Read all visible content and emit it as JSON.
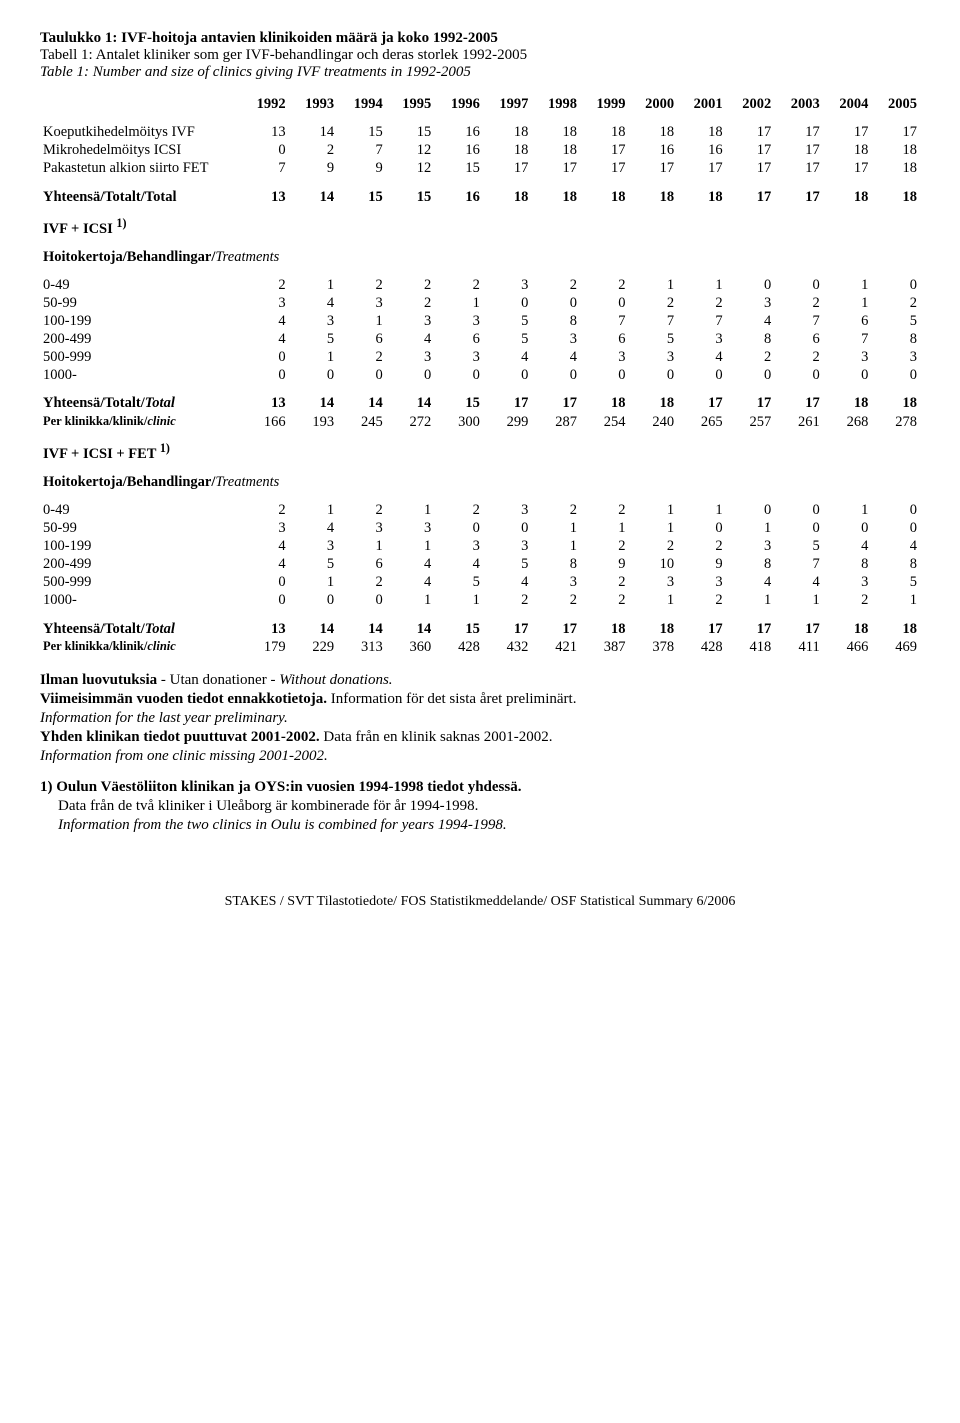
{
  "titles": {
    "fi": "Taulukko 1: IVF-hoitoja antavien klinikoiden määrä ja koko 1992-2005",
    "sv": "Tabell 1: Antalet kliniker som ger IVF-behandlingar och deras storlek 1992-2005",
    "en": "Table 1: Number and size of clinics giving IVF treatments in 1992-2005"
  },
  "years": [
    "1992",
    "1993",
    "1994",
    "1995",
    "1996",
    "1997",
    "1998",
    "1999",
    "2000",
    "2001",
    "2002",
    "2003",
    "2004",
    "2005"
  ],
  "block1": {
    "rows": [
      {
        "label": "Koeputkihedelmöitys IVF",
        "v": [
          13,
          14,
          15,
          15,
          16,
          18,
          18,
          18,
          18,
          18,
          17,
          17,
          17,
          17
        ]
      },
      {
        "label": "Mikrohedelmöitys ICSI",
        "v": [
          0,
          2,
          7,
          12,
          16,
          18,
          18,
          17,
          16,
          16,
          17,
          17,
          18,
          18
        ]
      },
      {
        "label": "Pakastetun alkion siirto FET",
        "v": [
          7,
          9,
          9,
          12,
          15,
          17,
          17,
          17,
          17,
          17,
          17,
          17,
          17,
          18
        ]
      }
    ],
    "total": {
      "label": "Yhteensä/Totalt/Total",
      "v": [
        13,
        14,
        15,
        15,
        16,
        18,
        18,
        18,
        18,
        18,
        17,
        17,
        18,
        18
      ]
    }
  },
  "section_ivf_icsi": "IVF + ICSI ",
  "section_ivf_icsi_sup": "1)",
  "treatments_label": "Hoitokertoja/Behandlingar/",
  "treatments_label_it": "Treatments",
  "block2": {
    "rows": [
      {
        "label": "0-49",
        "v": [
          2,
          1,
          2,
          2,
          2,
          3,
          2,
          2,
          1,
          1,
          0,
          0,
          1,
          0
        ]
      },
      {
        "label": "50-99",
        "v": [
          3,
          4,
          3,
          2,
          1,
          0,
          0,
          0,
          2,
          2,
          3,
          2,
          1,
          2
        ]
      },
      {
        "label": "100-199",
        "v": [
          4,
          3,
          1,
          3,
          3,
          5,
          8,
          7,
          7,
          7,
          4,
          7,
          6,
          5
        ]
      },
      {
        "label": "200-499",
        "v": [
          4,
          5,
          6,
          4,
          6,
          5,
          3,
          6,
          5,
          3,
          8,
          6,
          7,
          8
        ]
      },
      {
        "label": "500-999",
        "v": [
          0,
          1,
          2,
          3,
          3,
          4,
          4,
          3,
          3,
          4,
          2,
          2,
          3,
          3
        ]
      },
      {
        "label": "1000-",
        "v": [
          0,
          0,
          0,
          0,
          0,
          0,
          0,
          0,
          0,
          0,
          0,
          0,
          0,
          0
        ]
      }
    ],
    "total": {
      "label": "Yhteensä/Totalt/",
      "label_it": "Total",
      "v": [
        13,
        14,
        14,
        14,
        15,
        17,
        17,
        18,
        18,
        17,
        17,
        17,
        18,
        18
      ]
    },
    "perclin": {
      "label": "Per klinikka/klinik/",
      "label_it": "clinic",
      "v": [
        166,
        193,
        245,
        272,
        300,
        299,
        287,
        254,
        240,
        265,
        257,
        261,
        268,
        278
      ]
    }
  },
  "section_ivf_icsi_fet": "IVF + ICSI + FET ",
  "section_ivf_icsi_fet_sup": "1)",
  "block3": {
    "rows": [
      {
        "label": "0-49",
        "v": [
          2,
          1,
          2,
          1,
          2,
          3,
          2,
          2,
          1,
          1,
          0,
          0,
          1,
          0
        ]
      },
      {
        "label": "50-99",
        "v": [
          3,
          4,
          3,
          3,
          0,
          0,
          1,
          1,
          1,
          0,
          1,
          0,
          0,
          0
        ]
      },
      {
        "label": "100-199",
        "v": [
          4,
          3,
          1,
          1,
          3,
          3,
          1,
          2,
          2,
          2,
          3,
          5,
          4,
          4
        ]
      },
      {
        "label": "200-499",
        "v": [
          4,
          5,
          6,
          4,
          4,
          5,
          8,
          9,
          10,
          9,
          8,
          7,
          8,
          8
        ]
      },
      {
        "label": "500-999",
        "v": [
          0,
          1,
          2,
          4,
          5,
          4,
          3,
          2,
          3,
          3,
          4,
          4,
          3,
          5
        ]
      },
      {
        "label": "1000-",
        "v": [
          0,
          0,
          0,
          1,
          1,
          2,
          2,
          2,
          1,
          2,
          1,
          1,
          2,
          1
        ]
      }
    ],
    "total": {
      "label": "Yhteensä/Totalt/",
      "label_it": "Total",
      "v": [
        13,
        14,
        14,
        14,
        15,
        17,
        17,
        18,
        18,
        17,
        17,
        17,
        18,
        18
      ]
    },
    "perclin": {
      "label": "Per klinikka/klinik/",
      "label_it": "clinic",
      "v": [
        179,
        229,
        313,
        360,
        428,
        432,
        421,
        387,
        378,
        428,
        418,
        411,
        466,
        469
      ]
    }
  },
  "notes": {
    "n1a": "Ilman luovutuksia",
    "n1b": " - Utan donationer - ",
    "n1c": "Without donations.",
    "n2a": "Viimeisimmän vuoden tiedot ennakkotietoja.",
    "n2b": " Information för det sista året preliminärt.",
    "n3": "Information for the last year preliminary.",
    "n4a": "Yhden klinikan tiedot puuttuvat 2001-2002.",
    "n4b": " Data från en klinik saknas 2001-2002.",
    "n5": "Information from one clinic missing 2001-2002.",
    "n6": "1) Oulun Väestöliiton klinikan ja OYS:in vuosien 1994-1998 tiedot yhdessä.",
    "n7": "Data från de två kliniker i Uleåborg är kombinerade för år 1994-1998.",
    "n8": "Information from the two clinics in Oulu is combined for years 1994-1998."
  },
  "footer": "STAKES / SVT Tilastotiedote/ FOS Statistikmeddelande/ OSF Statistical Summary 6/2006"
}
